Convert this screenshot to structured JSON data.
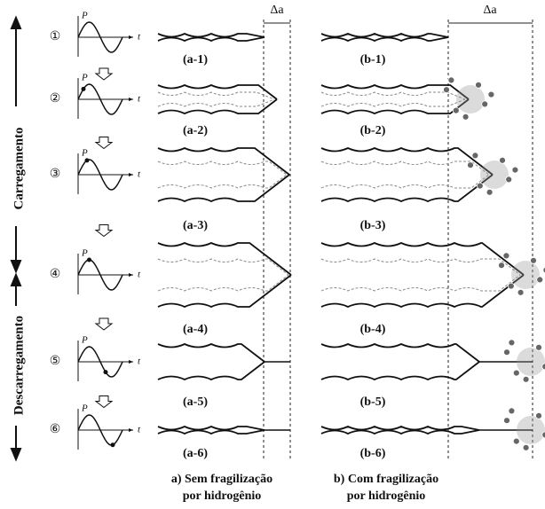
{
  "side_labels": {
    "loading": "Carregamento",
    "unloading": "Descarregamento"
  },
  "delta_a": [
    "Δa",
    "Δa"
  ],
  "steps": [
    {
      "number": "①",
      "p_label": "P",
      "t_label": "t",
      "a_label": "(a-1)",
      "b_label": "(b-1)"
    },
    {
      "number": "②",
      "p_label": "P",
      "t_label": "t",
      "a_label": "(a-2)",
      "b_label": "(b-2)"
    },
    {
      "number": "③",
      "p_label": "P",
      "t_label": "t",
      "a_label": "(a-3)",
      "b_label": "(b-3)"
    },
    {
      "number": "④",
      "p_label": "P",
      "t_label": "t",
      "a_label": "(a-4)",
      "b_label": "(b-4)"
    },
    {
      "number": "⑤",
      "p_label": "P",
      "t_label": "t",
      "a_label": "(a-5)",
      "b_label": "(b-5)"
    },
    {
      "number": "⑥",
      "p_label": "P",
      "t_label": "t",
      "a_label": "(a-6)",
      "b_label": "(b-6)"
    }
  ],
  "captions": {
    "a": [
      "a) Sem fragilização",
      "por hidrogênio"
    ],
    "b": [
      "b) Com fragilização",
      "por hidrogênio"
    ]
  }
}
